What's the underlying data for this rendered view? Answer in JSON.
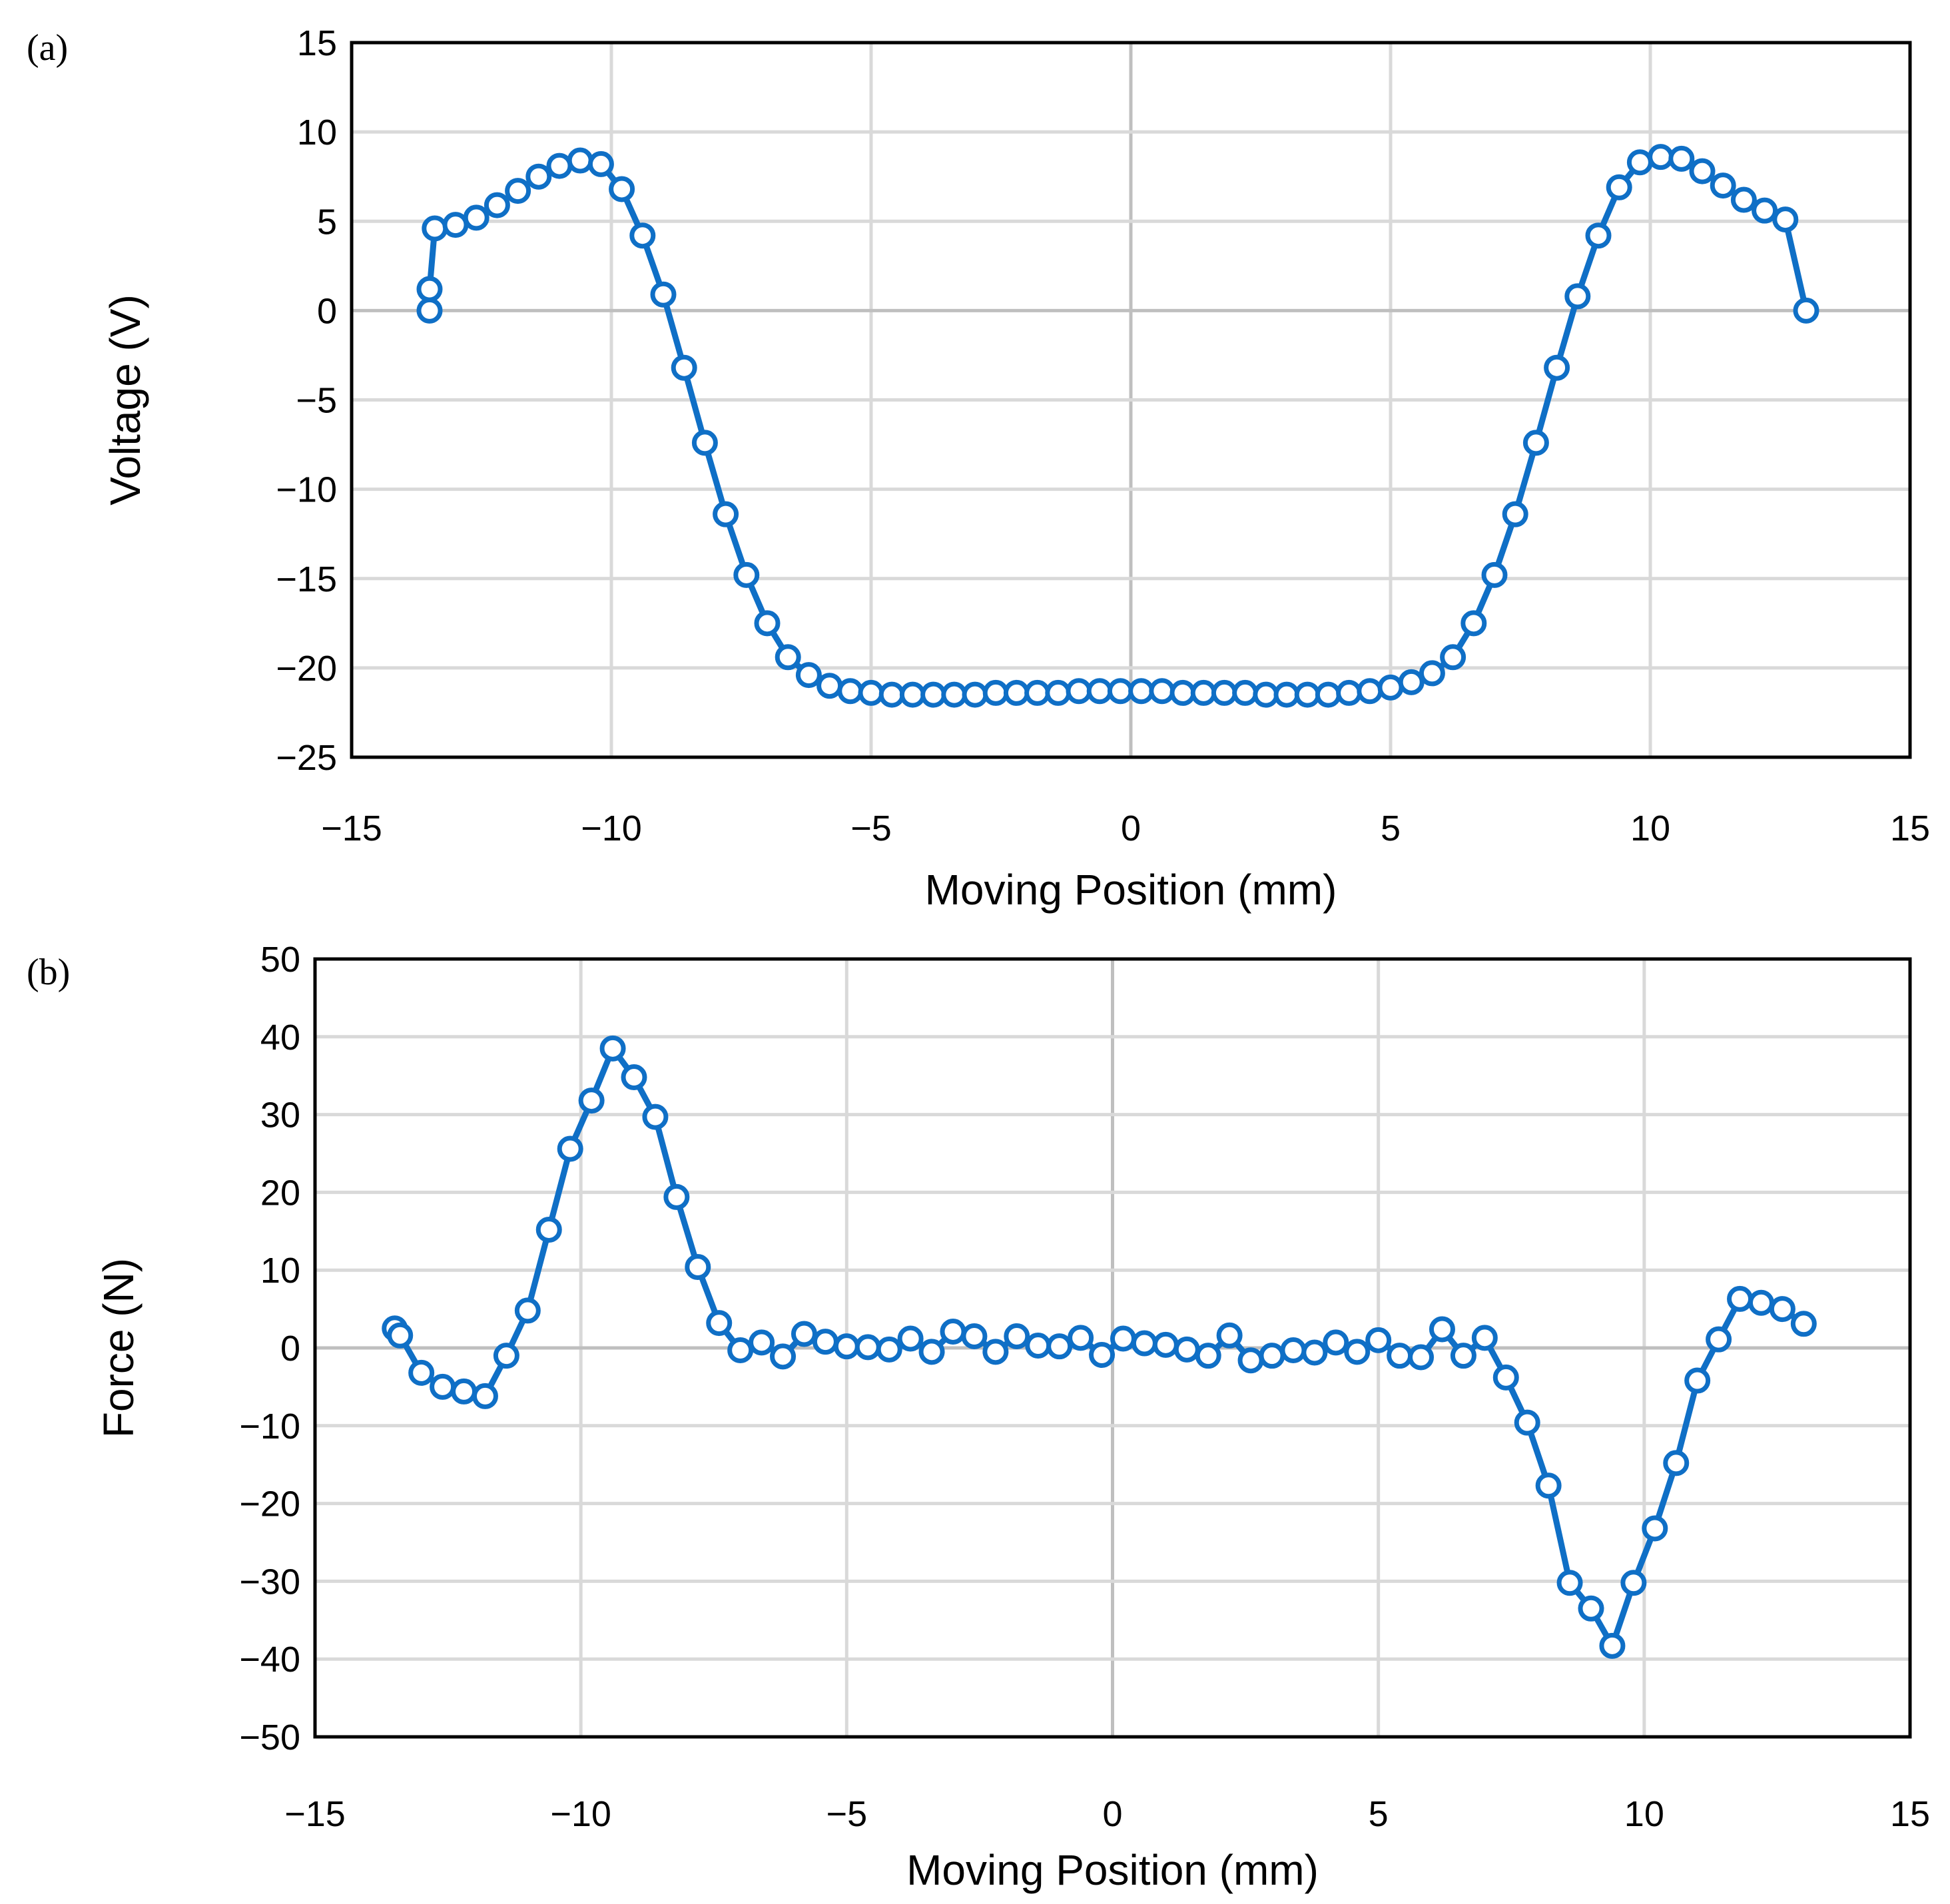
{
  "chart_data": [
    {
      "panel": "(a)",
      "type": "line",
      "title": "",
      "xlabel": "Moving Position (mm)",
      "ylabel": "Voltage (V)",
      "xlim": [
        -15,
        15
      ],
      "ylim": [
        -25,
        15
      ],
      "xticks": [
        -15,
        -10,
        -5,
        0,
        5,
        10,
        15
      ],
      "yticks": [
        -25,
        -20,
        -15,
        -10,
        -5,
        0,
        5,
        10,
        15
      ],
      "xtick_labels": [
        "−15",
        "−10",
        "−5",
        "0",
        "5",
        "10",
        "15"
      ],
      "ytick_labels": [
        "−25",
        "−20",
        "−15",
        "−10",
        "−5",
        "0",
        "5",
        "10",
        "15"
      ],
      "grid": true,
      "series": [
        {
          "name": "Voltage",
          "color": "#0f6fc6",
          "marker": "circle-open",
          "x": [
            -13.5,
            -13.5,
            -13.4,
            -13.0,
            -12.6,
            -12.2,
            -11.8,
            -11.4,
            -11.0,
            -10.6,
            -10.2,
            -9.8,
            -9.4,
            -9.0,
            -8.6,
            -8.2,
            -7.8,
            -7.4,
            -7.0,
            -6.6,
            -6.2,
            -5.8,
            -5.4,
            -5.0,
            -4.6,
            -4.2,
            -3.8,
            -3.4,
            -3.0,
            -2.6,
            -2.2,
            -1.8,
            -1.4,
            -1.0,
            -0.6,
            -0.2,
            0.2,
            0.6,
            1.0,
            1.4,
            1.8,
            2.2,
            2.6,
            3.0,
            3.4,
            3.8,
            4.2,
            4.6,
            5.0,
            5.4,
            5.8,
            6.2,
            6.6,
            7.0,
            7.4,
            7.8,
            8.2,
            8.6,
            9.0,
            9.4,
            9.8,
            10.2,
            10.6,
            11.0,
            11.4,
            11.8,
            12.2,
            12.6,
            13.0
          ],
          "y": [
            0.0,
            1.2,
            4.6,
            4.8,
            5.2,
            5.9,
            6.7,
            7.5,
            8.1,
            8.4,
            8.2,
            6.8,
            4.2,
            0.9,
            -3.2,
            -7.4,
            -11.4,
            -14.8,
            -17.5,
            -19.4,
            -20.4,
            -21.0,
            -21.3,
            -21.4,
            -21.5,
            -21.5,
            -21.5,
            -21.5,
            -21.5,
            -21.4,
            -21.4,
            -21.4,
            -21.4,
            -21.3,
            -21.3,
            -21.3,
            -21.3,
            -21.3,
            -21.4,
            -21.4,
            -21.4,
            -21.4,
            -21.5,
            -21.5,
            -21.5,
            -21.5,
            -21.4,
            -21.3,
            -21.1,
            -20.8,
            -20.3,
            -19.4,
            -17.5,
            -14.8,
            -11.4,
            -7.4,
            -3.2,
            0.8,
            4.2,
            6.9,
            8.3,
            8.6,
            8.5,
            7.8,
            7.0,
            6.2,
            5.6,
            5.1,
            0.0
          ]
        }
      ]
    },
    {
      "panel": "(b)",
      "type": "line",
      "title": "",
      "xlabel": "Moving Position (mm)",
      "ylabel": "Force (N)",
      "xlim": [
        -15,
        15
      ],
      "ylim": [
        -50,
        50
      ],
      "xticks": [
        -15,
        -10,
        -5,
        0,
        5,
        10,
        15
      ],
      "yticks": [
        -50,
        -40,
        -30,
        -20,
        -10,
        0,
        10,
        20,
        30,
        40,
        50
      ],
      "xtick_labels": [
        "−15",
        "−10",
        "−5",
        "0",
        "5",
        "10",
        "15"
      ],
      "ytick_labels": [
        "−50",
        "−40",
        "−30",
        "−20",
        "−10",
        "0",
        "10",
        "20",
        "30",
        "40",
        "50"
      ],
      "grid": true,
      "series": [
        {
          "name": "Force",
          "color": "#0f6fc6",
          "marker": "circle-open",
          "x": [
            -13.5,
            -13.4,
            -13.0,
            -12.6,
            -12.2,
            -11.8,
            -11.4,
            -11.0,
            -10.6,
            -10.2,
            -9.8,
            -9.4,
            -9.0,
            -8.6,
            -8.2,
            -7.8,
            -7.4,
            -7.0,
            -6.6,
            -6.2,
            -5.8,
            -5.4,
            -5.0,
            -4.6,
            -4.2,
            -3.8,
            -3.4,
            -3.0,
            -2.6,
            -2.2,
            -1.8,
            -1.4,
            -1.0,
            -0.6,
            -0.2,
            0.2,
            0.6,
            1.0,
            1.4,
            1.8,
            2.2,
            2.6,
            3.0,
            3.4,
            3.8,
            4.2,
            4.6,
            5.0,
            5.4,
            5.8,
            6.2,
            6.6,
            7.0,
            7.4,
            7.8,
            8.2,
            8.6,
            9.0,
            9.4,
            9.8,
            10.2,
            10.6,
            11.0,
            11.4,
            11.8,
            12.2,
            12.6,
            13.0
          ],
          "y": [
            2.5,
            1.6,
            -3.2,
            -5.0,
            -5.6,
            -6.2,
            -1.0,
            4.8,
            15.2,
            25.6,
            31.8,
            38.5,
            34.8,
            29.7,
            19.4,
            10.4,
            3.2,
            -0.3,
            0.7,
            -1.1,
            1.8,
            0.8,
            0.2,
            0.1,
            -0.2,
            1.2,
            -0.5,
            2.1,
            1.5,
            -0.5,
            1.5,
            0.3,
            0.2,
            1.3,
            -0.9,
            1.2,
            0.6,
            0.4,
            -0.2,
            -1.0,
            1.6,
            -1.6,
            -1.0,
            -0.3,
            -0.6,
            0.7,
            -0.5,
            1.0,
            -1.0,
            -1.2,
            2.4,
            -1.0,
            1.3,
            -3.8,
            -9.6,
            -17.7,
            -30.2,
            -33.5,
            -38.3,
            -30.2,
            -23.2,
            -14.8,
            -4.2,
            1.1,
            6.3,
            5.8,
            5.0,
            3.1
          ]
        }
      ]
    }
  ]
}
